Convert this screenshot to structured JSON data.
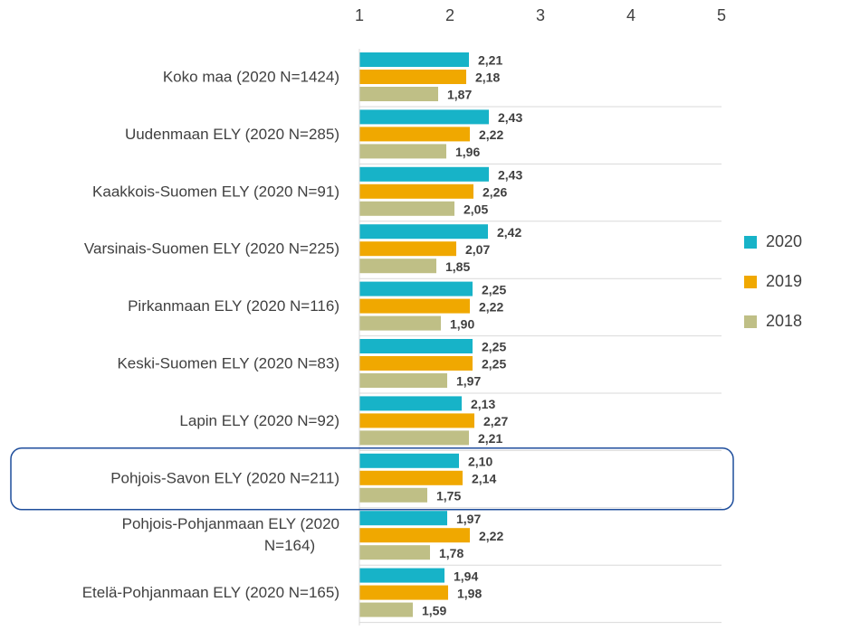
{
  "chart_data": {
    "type": "bar",
    "orientation": "horizontal",
    "categories": [
      "Koko maa (2020 N=1424)",
      "Uudenmaan ELY (2020 N=285)",
      "Kaakkois-Suomen ELY (2020 N=91)",
      "Varsinais-Suomen ELY (2020 N=225)",
      "Pirkanmaan ELY (2020 N=116)",
      "Keski-Suomen ELY (2020 N=83)",
      "Lapin ELY (2020 N=92)",
      "Pohjois-Savon ELY (2020 N=211)",
      "Pohjois-Pohjanmaan ELY (2020 N=164)",
      "Etelä-Pohjanmaan ELY (2020 N=165)"
    ],
    "series": [
      {
        "name": "2020",
        "color": "#17b3c8",
        "values": [
          2.21,
          2.43,
          2.43,
          2.42,
          2.25,
          2.25,
          2.13,
          2.1,
          1.97,
          1.94
        ],
        "value_labels": [
          "2,21",
          "2,43",
          "2,43",
          "2,42",
          "2,25",
          "2,25",
          "2,13",
          "2,10",
          "1,97",
          "1,94"
        ]
      },
      {
        "name": "2019",
        "color": "#f0a800",
        "values": [
          2.18,
          2.22,
          2.26,
          2.07,
          2.22,
          2.25,
          2.27,
          2.14,
          2.22,
          1.98
        ],
        "value_labels": [
          "2,18",
          "2,22",
          "2,26",
          "2,07",
          "2,22",
          "2,25",
          "2,27",
          "2,14",
          "2,22",
          "1,98"
        ]
      },
      {
        "name": "2018",
        "color": "#bfbf86",
        "values": [
          1.87,
          1.96,
          2.05,
          1.85,
          1.9,
          1.97,
          2.21,
          1.75,
          1.78,
          1.59
        ],
        "value_labels": [
          "1,87",
          "1,96",
          "2,05",
          "1,85",
          "1,90",
          "1,97",
          "2,21",
          "1,75",
          "1,78",
          "1,59"
        ]
      }
    ],
    "xlim": [
      1,
      5
    ],
    "xticks": [
      1,
      2,
      3,
      4,
      5
    ],
    "legend": "right"
  }
}
